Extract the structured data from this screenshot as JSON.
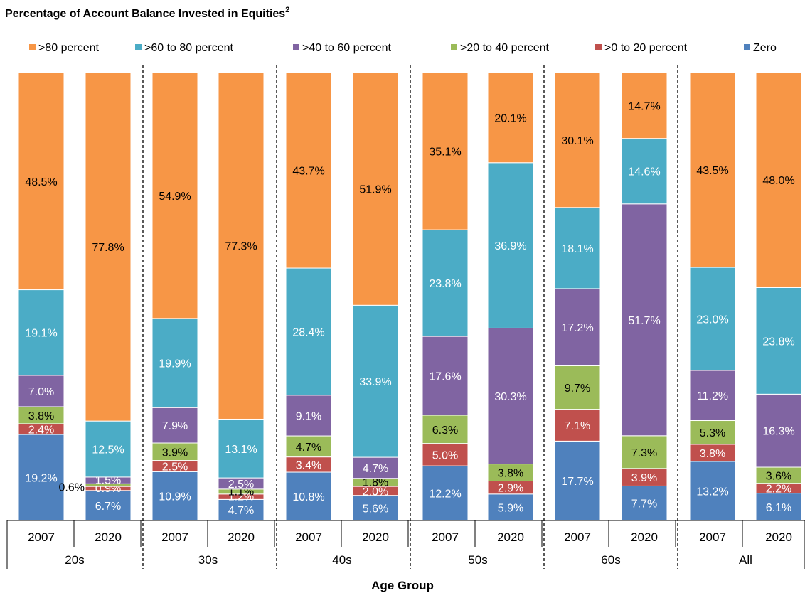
{
  "chart_data": {
    "type": "bar",
    "stacked": true,
    "percent_scale": [
      0,
      100
    ],
    "title": "Percentage of Account  Balance Invested in Equities",
    "title_superscript": "2",
    "xlabel": "Age Group",
    "ylabel": "",
    "legend_position": "top",
    "grid": false,
    "groups": [
      "20s",
      "30s",
      "40s",
      "50s",
      "60s",
      "All"
    ],
    "years": [
      "2007",
      "2020"
    ],
    "bars": [
      {
        "group": "20s",
        "year": "2007",
        "values": [
          19.2,
          2.4,
          3.8,
          7.0,
          19.1,
          48.5
        ]
      },
      {
        "group": "20s",
        "year": "2020",
        "values": [
          6.7,
          0.9,
          0.6,
          1.5,
          12.5,
          77.8
        ]
      },
      {
        "group": "30s",
        "year": "2007",
        "values": [
          10.9,
          2.5,
          3.9,
          7.9,
          19.9,
          54.9
        ]
      },
      {
        "group": "30s",
        "year": "2020",
        "values": [
          4.7,
          1.2,
          1.1,
          2.5,
          13.1,
          77.3
        ]
      },
      {
        "group": "40s",
        "year": "2007",
        "values": [
          10.8,
          3.4,
          4.7,
          9.1,
          28.4,
          43.7
        ]
      },
      {
        "group": "40s",
        "year": "2020",
        "values": [
          5.6,
          2.0,
          1.8,
          4.7,
          33.9,
          51.9
        ]
      },
      {
        "group": "50s",
        "year": "2007",
        "values": [
          12.2,
          5.0,
          6.3,
          17.6,
          23.8,
          35.1
        ]
      },
      {
        "group": "50s",
        "year": "2020",
        "values": [
          5.9,
          2.9,
          3.8,
          30.3,
          36.9,
          20.1
        ]
      },
      {
        "group": "60s",
        "year": "2007",
        "values": [
          17.7,
          7.1,
          9.7,
          17.2,
          18.1,
          30.1
        ]
      },
      {
        "group": "60s",
        "year": "2020",
        "values": [
          7.7,
          3.9,
          7.3,
          51.7,
          14.6,
          14.7
        ]
      },
      {
        "group": "All",
        "year": "2007",
        "values": [
          13.2,
          3.8,
          5.3,
          11.2,
          23.0,
          43.5
        ]
      },
      {
        "group": "All",
        "year": "2020",
        "values": [
          6.1,
          2.2,
          3.6,
          16.3,
          23.8,
          48.0
        ]
      }
    ],
    "series": [
      {
        "name": "Zero",
        "color": "#4F81BD",
        "label_color": "#FFFFFF"
      },
      {
        "name": ">0 to 20 percent",
        "color": "#C0504D",
        "label_color": "#FFFFFF"
      },
      {
        "name": ">20 to 40 percent",
        "color": "#9BBB59",
        "label_color": "#000000"
      },
      {
        "name": ">40 to 60 percent",
        "color": "#8064A2",
        "label_color": "#FFFFFF"
      },
      {
        "name": ">60 to 80 percent",
        "color": "#4BACC6",
        "label_color": "#FFFFFF"
      },
      {
        "name": ">80 percent",
        "color": "#F79646",
        "label_color": "#000000"
      }
    ],
    "legend_order": [
      ">80 percent",
      ">60 to 80 percent",
      ">40 to 60 percent",
      ">20 to 40 percent",
      ">0 to 20 percent",
      "Zero"
    ],
    "label_suffix": "%"
  }
}
